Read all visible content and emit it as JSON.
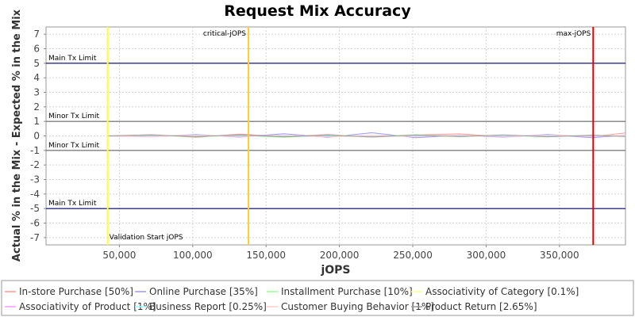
{
  "chart_data": {
    "type": "line",
    "title": "Request Mix Accuracy",
    "xlabel": "jOPS",
    "ylabel": "Actual % in the Mix - Expected % in the Mix",
    "xlim": [
      0,
      395000
    ],
    "ylim": [
      -7.5,
      7.5
    ],
    "grid": true,
    "legend_position": "bottom",
    "x_ticks": [
      50000,
      100000,
      150000,
      200000,
      250000,
      300000,
      350000
    ],
    "x_tick_labels": [
      "50,000",
      "100,000",
      "150,000",
      "200,000",
      "250,000",
      "300,000",
      "350,000"
    ],
    "y_ticks": [
      7,
      6,
      5,
      4,
      3,
      2,
      1,
      0,
      -1,
      -2,
      -3,
      -4,
      -5,
      -6,
      -7
    ],
    "y_tick_labels": [
      "7",
      "6",
      "5",
      "4",
      "3",
      "2",
      "1",
      "0",
      "-1",
      "-2",
      "-3",
      "-4",
      "-5",
      "-6",
      "-7"
    ],
    "horizontal_lines": [
      {
        "label": "Main Tx Limit",
        "value": 5,
        "label_side": "above",
        "color": "#000066"
      },
      {
        "label": "Minor Tx Limit",
        "value": 1,
        "label_side": "above",
        "color": "#666666"
      },
      {
        "label": "Minor Tx Limit",
        "value": -1,
        "label_side": "above",
        "color": "#666666"
      },
      {
        "label": "Main Tx Limit",
        "value": -5,
        "label_side": "above",
        "color": "#000066"
      }
    ],
    "vertical_lines": [
      {
        "label": "Validation Start jOPS",
        "value": 42000,
        "color": "#ffff33",
        "label_pos": "bottom"
      },
      {
        "label": "critical-jOPS",
        "value": 138000,
        "color": "#ffcc33",
        "label_pos": "top-left"
      },
      {
        "label": "max-jOPS",
        "value": 373000,
        "color": "#dd0000",
        "label_pos": "top-left"
      }
    ],
    "series": [
      {
        "name": "In-store Purchase [50%]",
        "color": "#ff9999",
        "x": [
          42000,
          72000,
          102000,
          132000,
          162000,
          192000,
          222000,
          252000,
          282000,
          312000,
          342000,
          372000,
          395000
        ],
        "y": [
          0.0,
          0.08,
          -0.1,
          0.12,
          -0.05,
          0.1,
          -0.08,
          0.06,
          0.14,
          -0.06,
          0.08,
          -0.05,
          0.2
        ]
      },
      {
        "name": "Online Purchase [35%]",
        "color": "#9999ff",
        "x": [
          42000,
          72000,
          102000,
          132000,
          162000,
          192000,
          222000,
          252000,
          282000,
          312000,
          342000,
          372000,
          395000
        ],
        "y": [
          0.0,
          -0.06,
          0.1,
          -0.08,
          0.15,
          -0.1,
          0.22,
          -0.12,
          0.05,
          -0.08,
          0.1,
          -0.12,
          0.05
        ]
      },
      {
        "name": "Installment Purchase [10%]",
        "color": "#99ff99",
        "x": [
          42000,
          72000,
          102000,
          132000,
          162000,
          192000,
          222000,
          252000,
          282000,
          312000,
          342000,
          372000,
          395000
        ],
        "y": [
          0.0,
          0.05,
          -0.06,
          0.04,
          -0.1,
          0.06,
          -0.04,
          0.08,
          -0.05,
          0.04,
          -0.06,
          0.05,
          -0.03
        ]
      },
      {
        "name": "Associativity of Category [0.1%]",
        "color": "#ffff99",
        "x": [
          42000,
          72000,
          102000,
          132000,
          162000,
          192000,
          222000,
          252000,
          282000,
          312000,
          342000,
          372000,
          395000
        ],
        "y": [
          0.0,
          0.02,
          -0.03,
          0.02,
          -0.02,
          0.03,
          -0.02,
          0.02,
          -0.03,
          0.02,
          -0.02,
          0.02,
          0.0
        ]
      },
      {
        "name": "Associativity of Product [1%]",
        "color": "#ff99ff",
        "x": [
          42000,
          72000,
          102000,
          132000,
          162000,
          192000,
          222000,
          252000,
          282000,
          312000,
          342000,
          372000,
          395000
        ],
        "y": [
          0.0,
          -0.04,
          0.05,
          -0.03,
          0.04,
          -0.05,
          0.03,
          -0.04,
          0.05,
          -0.03,
          0.04,
          -0.03,
          0.02
        ]
      },
      {
        "name": "Business Report [0.25%]",
        "color": "#99ffff",
        "x": [
          42000,
          72000,
          102000,
          132000,
          162000,
          192000,
          222000,
          252000,
          282000,
          312000,
          342000,
          372000,
          395000
        ],
        "y": [
          0.0,
          0.03,
          -0.02,
          0.04,
          -0.03,
          0.02,
          -0.04,
          0.03,
          -0.02,
          0.03,
          -0.02,
          0.03,
          -0.01
        ]
      },
      {
        "name": "Customer Buying Behavior [1%]",
        "color": "#ffcccc",
        "x": [
          42000,
          72000,
          102000,
          132000,
          162000,
          192000,
          222000,
          252000,
          282000,
          312000,
          342000,
          372000,
          395000
        ],
        "y": [
          0.0,
          -0.05,
          0.06,
          -0.04,
          0.05,
          -0.06,
          0.04,
          -0.05,
          0.06,
          -0.04,
          0.05,
          -0.04,
          0.03
        ]
      },
      {
        "name": "Product Return [2.65%]",
        "color": "#999999",
        "x": [
          42000,
          72000,
          102000,
          132000,
          162000,
          192000,
          222000,
          252000,
          282000,
          312000,
          342000,
          372000,
          395000
        ],
        "y": [
          0.0,
          0.06,
          -0.05,
          0.07,
          -0.06,
          0.05,
          -0.07,
          0.06,
          -0.05,
          0.07,
          -0.06,
          0.05,
          -0.04
        ]
      }
    ]
  }
}
